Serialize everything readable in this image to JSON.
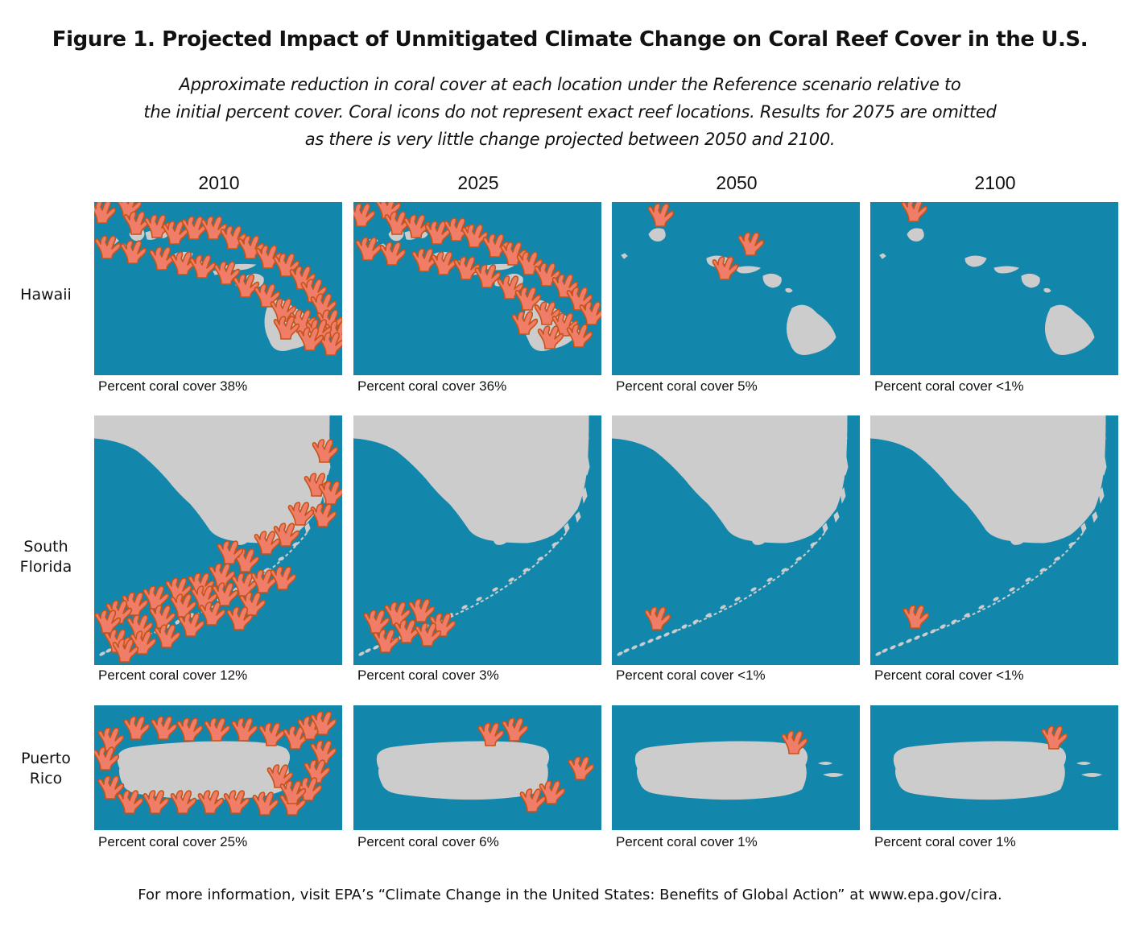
{
  "title": "Figure 1. Projected Impact of Unmitigated Climate Change on Coral Reef Cover in the U.S.",
  "subtitle": {
    "line1": "Approximate reduction in coral cover at each location under the Reference scenario relative to",
    "line2": "the initial percent cover. Coral icons do not represent exact reef locations. Results for 2075 are omitted",
    "line3": "as there is very little change projected between 2050 and 2100."
  },
  "colors": {
    "ocean": "#1287ab",
    "land": "#cccccc",
    "coral_fill": "#f07d68",
    "coral_stroke": "#c4541a"
  },
  "chart_data": {
    "type": "table",
    "title": "Figure 1. Projected Impact of Unmitigated Climate Change on Coral Reef Cover in the U.S.",
    "scenario": "Reference",
    "years": [
      "2010",
      "2025",
      "2050",
      "2100"
    ],
    "regions": [
      {
        "name": "Hawaii",
        "label_lines": [
          "Hawaii"
        ],
        "captions": [
          "Percent coral cover 38%",
          "Percent coral cover 36%",
          "Percent coral cover 5%",
          "Percent coral cover <1%"
        ],
        "coral_cover_percent": [
          38,
          36,
          5,
          0.5
        ]
      },
      {
        "name": "South Florida",
        "label_lines": [
          "South",
          "Florida"
        ],
        "captions": [
          "Percent coral cover 12%",
          "Percent coral cover 3%",
          "Percent coral cover <1%",
          "Percent coral cover <1%"
        ],
        "coral_cover_percent": [
          12,
          3,
          0.5,
          0.5
        ]
      },
      {
        "name": "Puerto Rico",
        "label_lines": [
          "Puerto",
          "Rico"
        ],
        "captions": [
          "Percent coral cover 25%",
          "Percent coral cover 6%",
          "Percent coral cover 1%",
          "Percent coral cover 1%"
        ],
        "coral_cover_percent": [
          25,
          6,
          1,
          1
        ]
      }
    ]
  },
  "footer": "For more information, visit EPA’s “Climate Change in the United States: Benefits of Global Action” at www.epa.gov/cira."
}
